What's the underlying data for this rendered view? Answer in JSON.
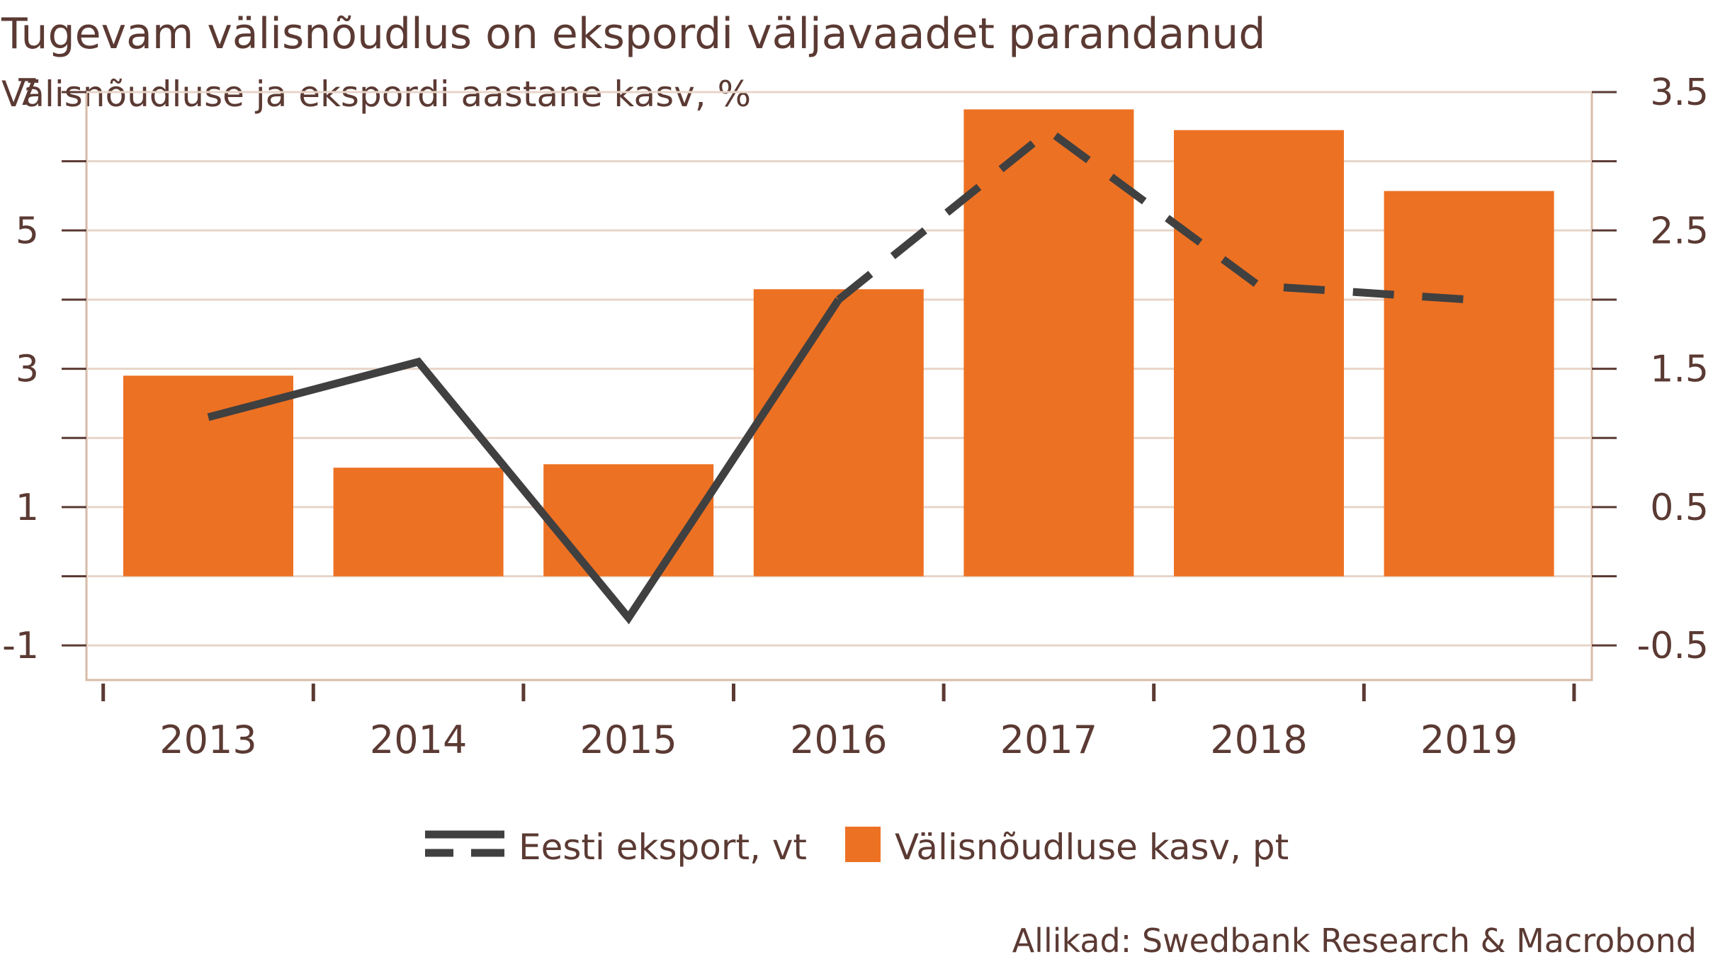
{
  "chart_data": {
    "type": "bar",
    "title": "Tugevam välisnõudlus on ekspordi väljavaadet parandanud",
    "subtitle": "Välisnõudluse ja ekspordi aastane kasv, %",
    "categories": [
      "2013",
      "2014",
      "2015",
      "2016",
      "2017",
      "2018",
      "2019"
    ],
    "left_axis": {
      "ylim": [
        -1.5,
        7
      ],
      "ticks": [
        "7",
        "5",
        "3",
        "1",
        "-1"
      ],
      "tick_values": [
        7,
        5,
        3,
        1,
        -1
      ]
    },
    "right_axis": {
      "ylim": [
        -0.75,
        3.5
      ],
      "ticks": [
        "3.5",
        "2.5",
        "1.5",
        "0.5",
        "-0.5"
      ],
      "tick_values": [
        3.5,
        2.5,
        1.5,
        0.5,
        -0.5
      ]
    },
    "grid": true,
    "legend_position": "bottom",
    "series": [
      {
        "name": "Välisnõudluse kasv, pt",
        "kind": "bar",
        "axis": "left",
        "color": "#ED7123",
        "values": [
          2.9,
          1.57,
          1.62,
          4.15,
          6.75,
          6.45,
          5.57
        ]
      },
      {
        "name": "Eesti eksport, vt",
        "kind": "line",
        "axis": "right",
        "color": "#404040",
        "values": [
          1.15,
          1.55,
          -0.3,
          2.0,
          3.22,
          2.1,
          2.0
        ],
        "dashed_from_index": 3
      }
    ],
    "source": "Allikad: Swedbank Research & Macrobond"
  }
}
